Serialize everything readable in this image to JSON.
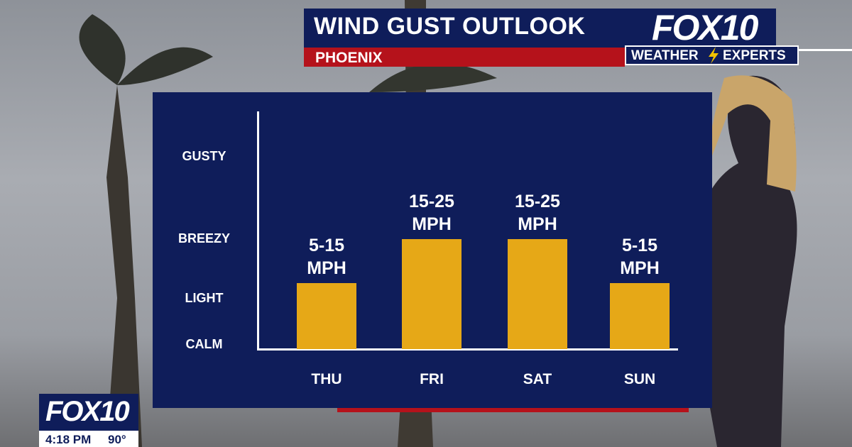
{
  "chart_data": {
    "type": "bar",
    "title": "WIND GUST OUTLOOK",
    "subtitle": "PHOENIX",
    "categories": [
      "THU",
      "FRI",
      "SAT",
      "SUN"
    ],
    "values": [
      15,
      25,
      25,
      15
    ],
    "value_labels": [
      "5-15 MPH",
      "15-25 MPH",
      "15-25 MPH",
      "5-15 MPH"
    ],
    "color": "#e6a817",
    "ylim": [
      0,
      54
    ],
    "yticks": [
      {
        "value": 1,
        "label": "CALM"
      },
      {
        "value": 11.5,
        "label": "LIGHT"
      },
      {
        "value": 25,
        "label": "BREEZY"
      },
      {
        "value": 43.7,
        "label": "GUSTY"
      }
    ]
  },
  "branding": {
    "logo": "FOX10",
    "tagline_left": "WEATHER",
    "tagline_right": "EXPERTS",
    "bug_logo": "FOX10",
    "time": "4:18 PM",
    "temperature": "90°"
  }
}
